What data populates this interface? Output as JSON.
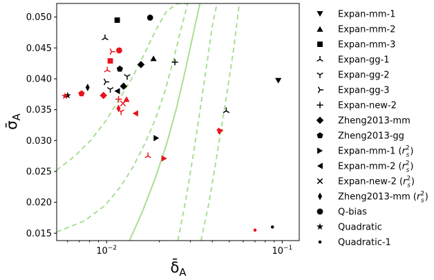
{
  "chart_data": {
    "type": "scatter",
    "xscale": "log",
    "xlim": [
      0.0052,
      0.125
    ],
    "ylim": [
      0.0138,
      0.0522
    ],
    "xlabel": "δ̄",
    "xlabel_sub": "A",
    "ylabel": "σ̄",
    "ylabel_sub": "A",
    "x_ticks": [
      {
        "value": 0.01,
        "base": "10",
        "exp": "−2"
      },
      {
        "value": 0.1,
        "base": "10",
        "exp": "−1"
      }
    ],
    "y_ticks": [
      "0.015",
      "0.020",
      "0.025",
      "0.030",
      "0.035",
      "0.040",
      "0.045",
      "0.050"
    ],
    "legend_position": "right",
    "colors": {
      "black": "#000000",
      "red": "#e8141c",
      "green": "#a8df8f"
    },
    "curves": [
      {
        "style": "solid",
        "x": [
          0.0135,
          0.016,
          0.019,
          0.022,
          0.025,
          0.028,
          0.031,
          0.034
        ],
        "y": [
          0.0138,
          0.0185,
          0.024,
          0.0295,
          0.0352,
          0.0412,
          0.047,
          0.0522
        ]
      },
      {
        "style": "dashed",
        "x": [
          0.0052,
          0.0066,
          0.0081,
          0.0098,
          0.0117,
          0.0139,
          0.0164,
          0.019,
          0.022,
          0.0255,
          0.029
        ],
        "y": [
          0.0252,
          0.0275,
          0.03,
          0.033,
          0.0365,
          0.04,
          0.044,
          0.0478,
          0.051,
          0.0522,
          0.0522
        ]
      },
      {
        "style": "dashed",
        "x": [
          0.0052,
          0.0075,
          0.0098,
          0.012,
          0.0142,
          0.0165,
          0.019,
          0.0215,
          0.024,
          0.0265,
          0.029
        ],
        "y": [
          0.0152,
          0.017,
          0.0195,
          0.0225,
          0.0258,
          0.0295,
          0.0335,
          0.038,
          0.043,
          0.048,
          0.0522
        ]
      },
      {
        "style": "dashed",
        "x": [
          0.0345,
          0.038,
          0.0415,
          0.045,
          0.049,
          0.053,
          0.057
        ],
        "y": [
          0.0138,
          0.0195,
          0.0258,
          0.032,
          0.0385,
          0.045,
          0.0522
        ]
      },
      {
        "style": "dashed",
        "x": [
          0.0255,
          0.0285,
          0.0315,
          0.0345,
          0.0375,
          0.04,
          0.0425
        ],
        "y": [
          0.0138,
          0.021,
          0.0285,
          0.036,
          0.043,
          0.0485,
          0.0522
        ]
      }
    ],
    "legend": [
      {
        "label": "Expan-mm-1",
        "marker": "tri-down"
      },
      {
        "label": "Expan-mm-2",
        "marker": "tri-up"
      },
      {
        "label": "Expan-mm-3",
        "marker": "square"
      },
      {
        "label": "Expan-gg-1",
        "marker": "y-down"
      },
      {
        "label": "Expan-gg-2",
        "marker": "y-up"
      },
      {
        "label": "Expan-gg-3",
        "marker": "y-left"
      },
      {
        "label": "Expan-new-2",
        "marker": "plus"
      },
      {
        "label": "Zheng2013-mm",
        "marker": "diamond"
      },
      {
        "label": "Zheng2013-gg",
        "marker": "pentagon"
      },
      {
        "label": "Expan-mm-1 (",
        "suffix": true,
        "marker": "tri-right"
      },
      {
        "label": "Expan-mm-2 (",
        "suffix": true,
        "marker": "tri-left"
      },
      {
        "label": "Expan-new-2 (",
        "suffix": true,
        "marker": "x"
      },
      {
        "label": "Zheng2013-mm (",
        "suffix": true,
        "marker": "thin-diamond"
      },
      {
        "label": "Q-bias",
        "marker": "circle"
      },
      {
        "label": "Quadratic",
        "marker": "star"
      },
      {
        "label": "Quadratic-1",
        "marker": "dot"
      }
    ],
    "legend_suffix": {
      "var": "r",
      "sub": "s",
      "sup": "2",
      "close": ")"
    },
    "points": [
      {
        "marker": "tri-down",
        "color": "black",
        "x": 0.095,
        "y": 0.0397
      },
      {
        "marker": "tri-down",
        "color": "red",
        "x": 0.044,
        "y": 0.0314
      },
      {
        "marker": "tri-up",
        "color": "black",
        "x": 0.0185,
        "y": 0.0433
      },
      {
        "marker": "tri-up",
        "color": "red",
        "x": 0.013,
        "y": 0.0367
      },
      {
        "marker": "square",
        "color": "black",
        "x": 0.0115,
        "y": 0.0495
      },
      {
        "marker": "square",
        "color": "red",
        "x": 0.0105,
        "y": 0.0429
      },
      {
        "marker": "y-down",
        "color": "black",
        "x": 0.0098,
        "y": 0.0466
      },
      {
        "marker": "y-down",
        "color": "black",
        "x": 0.048,
        "y": 0.0348
      },
      {
        "marker": "y-down",
        "color": "red",
        "x": 0.0101,
        "y": 0.0414
      },
      {
        "marker": "y-down",
        "color": "red",
        "x": 0.0172,
        "y": 0.0275
      },
      {
        "marker": "y-up",
        "color": "black",
        "x": 0.0131,
        "y": 0.0404
      },
      {
        "marker": "y-up",
        "color": "black",
        "x": 0.0105,
        "y": 0.0383
      },
      {
        "marker": "y-up",
        "color": "red",
        "x": 0.0121,
        "y": 0.0347
      },
      {
        "marker": "y-left",
        "color": "black",
        "x": 0.0099,
        "y": 0.0395
      },
      {
        "marker": "y-left",
        "color": "red",
        "x": 0.0107,
        "y": 0.0444
      },
      {
        "marker": "plus",
        "color": "black",
        "x": 0.0245,
        "y": 0.0427
      },
      {
        "marker": "plus",
        "color": "red",
        "x": 0.0117,
        "y": 0.0367
      },
      {
        "marker": "diamond",
        "color": "black",
        "x": 0.0157,
        "y": 0.0423
      },
      {
        "marker": "diamond",
        "color": "black",
        "x": 0.0125,
        "y": 0.0388
      },
      {
        "marker": "diamond",
        "color": "red",
        "x": 0.0096,
        "y": 0.0373
      },
      {
        "marker": "pentagon",
        "color": "black",
        "x": 0.0119,
        "y": 0.0416
      },
      {
        "marker": "pentagon",
        "color": "red",
        "x": 0.0072,
        "y": 0.0376
      },
      {
        "marker": "tri-right",
        "color": "black",
        "x": 0.0192,
        "y": 0.0304
      },
      {
        "marker": "tri-right",
        "color": "red",
        "x": 0.0213,
        "y": 0.0271
      },
      {
        "marker": "tri-right",
        "color": "red",
        "x": 0.0446,
        "y": 0.0316
      },
      {
        "marker": "tri-left",
        "color": "black",
        "x": 0.0115,
        "y": 0.038
      },
      {
        "marker": "tri-left",
        "color": "red",
        "x": 0.0146,
        "y": 0.0344
      },
      {
        "marker": "x",
        "color": "red",
        "x": 0.0124,
        "y": 0.036
      },
      {
        "marker": "thin-diamond",
        "color": "black",
        "x": 0.0078,
        "y": 0.0386
      },
      {
        "marker": "thin-diamond",
        "color": "red",
        "x": 0.0117,
        "y": 0.0352
      },
      {
        "marker": "circle",
        "color": "black",
        "x": 0.0177,
        "y": 0.0499
      },
      {
        "marker": "circle",
        "color": "red",
        "x": 0.0118,
        "y": 0.0446
      },
      {
        "marker": "star",
        "color": "black",
        "x": 0.006,
        "y": 0.0373
      },
      {
        "marker": "star",
        "color": "red",
        "x": 0.0058,
        "y": 0.0372
      },
      {
        "marker": "dot",
        "color": "black",
        "x": 0.088,
        "y": 0.016
      },
      {
        "marker": "dot",
        "color": "red",
        "x": 0.07,
        "y": 0.0155
      }
    ]
  }
}
